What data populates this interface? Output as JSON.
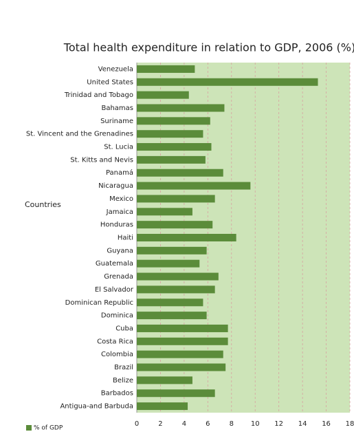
{
  "chart_data": {
    "type": "bar",
    "orientation": "horizontal",
    "title": "Total health expenditure in relation to GDP, 2006 (%)",
    "y_label": "Countries",
    "categories": [
      "Venezuela",
      "United States",
      "Trinidad and Tobago",
      "Bahamas",
      "Suriname",
      "St. Vincent and the Grenadines",
      "St. Lucia",
      "St. Kitts and Nevis",
      "Panamá",
      "Nicaragua",
      "Mexico",
      "Jamaica",
      "Honduras",
      "Haiti",
      "Guyana",
      "Guatemala",
      "Grenada",
      "El Salvador",
      "Dominican Republic",
      "Dominica",
      "Cuba",
      "Costa Rica",
      "Colombia",
      "Brazil",
      "Belize",
      "Barbados",
      "Antigua-and Barbuda"
    ],
    "series": [
      {
        "name": "% of GDP",
        "color": "#5b8c3a",
        "values": [
          4.9,
          15.3,
          4.4,
          7.4,
          6.2,
          5.6,
          6.3,
          5.8,
          7.3,
          9.6,
          6.6,
          4.7,
          6.4,
          8.4,
          5.9,
          5.3,
          6.9,
          6.6,
          5.6,
          5.9,
          7.7,
          7.7,
          7.3,
          7.5,
          4.7,
          6.6,
          4.3
        ]
      }
    ],
    "xlim": [
      0,
      18
    ],
    "xticks": [
      0,
      2,
      4,
      6,
      8,
      10,
      12,
      14,
      16,
      18
    ],
    "grid": true,
    "legend": "bottom-left"
  }
}
